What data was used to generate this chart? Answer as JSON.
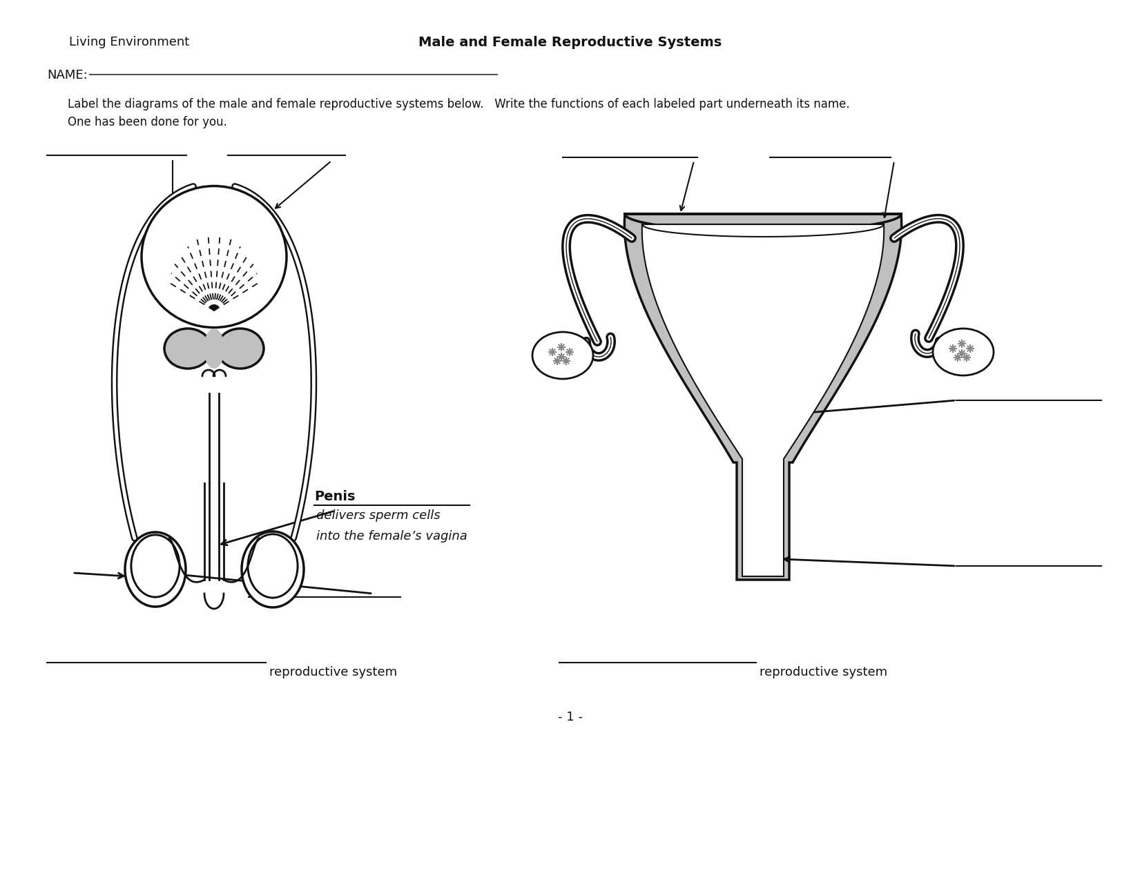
{
  "title": "Male and Female Reproductive Systems",
  "subtitle_left": "Living Environment",
  "name_label": "NAME:",
  "instructions": "Label the diagrams of the male and female reproductive systems below.   Write the functions of each labeled part underneath its name.\nOne has been done for you.",
  "penis_label": "Penis",
  "penis_function_line1": "delivers sperm cells",
  "penis_function_line2": "into the female’s vagina",
  "left_footer": "reproductive system",
  "right_footer": "reproductive system",
  "page_number": "- 1 -",
  "bg_color": "#ffffff",
  "text_color": "#000000",
  "gray_fill": "#c0c0c0",
  "line_color": "#111111"
}
